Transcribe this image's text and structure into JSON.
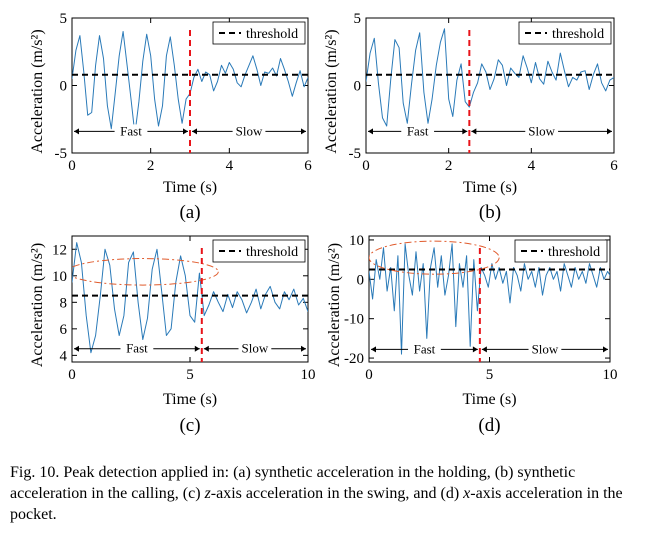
{
  "caption": {
    "label": "Fig. 10.",
    "text_a": "Peak detection applied in: (a) synthetic acceleration in the holding, (b) synthetic acceleration in the calling, (c) ",
    "var_z": "z",
    "text_b": "-axis acceleration in the swing, and (d) ",
    "var_x": "x",
    "text_c": "-axis acceleration in the pocket."
  },
  "chart_data": [
    {
      "panel": "(a)",
      "type": "line",
      "xlabel": "Time (s)",
      "ylabel": "Acceleration (m/s²)",
      "xlim": [
        0,
        6
      ],
      "ylim": [
        -5,
        5
      ],
      "xticks": [
        0,
        2,
        4,
        6
      ],
      "yticks": [
        -5,
        0,
        5
      ],
      "legend": {
        "entries": [
          "threshold"
        ],
        "placement": "top-right"
      },
      "threshold": 0.8,
      "split_time": 3.0,
      "segments": [
        "Fast",
        "Slow"
      ],
      "segment_y": -3.4,
      "series": [
        {
          "x": [
            0,
            0.1,
            0.2,
            0.3,
            0.4,
            0.5,
            0.6,
            0.7,
            0.8,
            0.9,
            1.0,
            1.1,
            1.2,
            1.3,
            1.4,
            1.5,
            1.6,
            1.7,
            1.8,
            1.9,
            2.0,
            2.1,
            2.2,
            2.3,
            2.4,
            2.5,
            2.6,
            2.7,
            2.8,
            2.9,
            3.0,
            3.1,
            3.2,
            3.3,
            3.4,
            3.5,
            3.6,
            3.7,
            3.8,
            3.9,
            4.0,
            4.1,
            4.2,
            4.3,
            4.4,
            4.5,
            4.6,
            4.7,
            4.8,
            4.9,
            5.0,
            5.1,
            5.2,
            5.3,
            5.4,
            5.5,
            5.6,
            5.7,
            5.8,
            5.9,
            6.0
          ],
          "y": [
            0.5,
            2.6,
            3.7,
            1.0,
            -2.2,
            -2.0,
            1.5,
            3.7,
            2.0,
            -1.5,
            -3.2,
            -0.5,
            2.2,
            4.0,
            1.5,
            -1.0,
            -3.6,
            -1.2,
            1.8,
            3.8,
            2.2,
            -1.0,
            -3.0,
            -1.5,
            2.2,
            3.6,
            1.5,
            -1.0,
            -2.8,
            -1.0,
            -0.6,
            0.6,
            1.2,
            0.3,
            1.0,
            0.8,
            -0.4,
            0.3,
            1.5,
            0.9,
            1.7,
            1.2,
            0.2,
            -0.1,
            0.8,
            1.5,
            2.2,
            1.2,
            0.0,
            1.0,
            0.9,
            1.3,
            0.7,
            2.0,
            1.2,
            0.3,
            -0.8,
            0.2,
            1.1,
            -0.1,
            0.6
          ]
        }
      ]
    },
    {
      "panel": "(b)",
      "type": "line",
      "xlabel": "Time (s)",
      "ylabel": "Acceleration (m/s²)",
      "xlim": [
        0,
        6
      ],
      "ylim": [
        -5,
        5
      ],
      "xticks": [
        0,
        2,
        4,
        6
      ],
      "yticks": [
        -5,
        0,
        5
      ],
      "legend": {
        "entries": [
          "threshold"
        ],
        "placement": "top-right"
      },
      "threshold": 0.8,
      "split_time": 2.5,
      "segments": [
        "Fast",
        "Slow"
      ],
      "segment_y": -3.4,
      "series": [
        {
          "x": [
            0,
            0.1,
            0.2,
            0.3,
            0.4,
            0.5,
            0.6,
            0.7,
            0.8,
            0.9,
            1.0,
            1.1,
            1.2,
            1.3,
            1.4,
            1.5,
            1.6,
            1.7,
            1.8,
            1.9,
            2.0,
            2.1,
            2.2,
            2.3,
            2.4,
            2.5,
            2.6,
            2.7,
            2.8,
            2.9,
            3.0,
            3.1,
            3.2,
            3.3,
            3.4,
            3.5,
            3.6,
            3.7,
            3.8,
            3.9,
            4.0,
            4.1,
            4.2,
            4.3,
            4.4,
            4.5,
            4.6,
            4.7,
            4.8,
            4.9,
            5.0,
            5.1,
            5.2,
            5.3,
            5.4,
            5.5,
            5.6,
            5.7,
            5.8,
            5.9,
            6.0
          ],
          "y": [
            0.3,
            2.4,
            3.5,
            0.2,
            -2.4,
            -3.0,
            0.5,
            3.4,
            2.8,
            -1.3,
            -2.8,
            0.1,
            2.6,
            3.9,
            -0.5,
            -2.8,
            -1.0,
            1.5,
            3.2,
            4.2,
            -1.0,
            -2.3,
            0.4,
            1.6,
            -1.2,
            -1.6,
            -0.5,
            0.2,
            1.6,
            1.0,
            -0.3,
            0.5,
            1.9,
            1.5,
            0.0,
            1.3,
            0.9,
            0.6,
            2.2,
            1.3,
            0.2,
            1.7,
            0.5,
            0.1,
            1.8,
            1.0,
            0.4,
            2.4,
            1.1,
            -0.1,
            0.6,
            0.4,
            1.0,
            1.1,
            -0.3,
            0.8,
            1.6,
            0.2,
            -0.4,
            0.4,
            0.6
          ]
        }
      ]
    },
    {
      "panel": "(c)",
      "type": "line",
      "xlabel": "Time (s)",
      "ylabel": "Acceleration (m/s²)",
      "xlim": [
        0,
        10
      ],
      "ylim": [
        3.5,
        13
      ],
      "xticks": [
        0,
        5,
        10
      ],
      "yticks": [
        4,
        6,
        8,
        10,
        12
      ],
      "legend": {
        "entries": [
          "threshold"
        ],
        "placement": "top-right"
      },
      "threshold": 8.5,
      "split_time": 5.5,
      "segments": [
        "Fast",
        "Slow"
      ],
      "segment_y": 4.5,
      "highlight_ellipse": {
        "cx": 3.0,
        "cy": 10.3,
        "rx": 3.2,
        "ry": 1.0
      },
      "series": [
        {
          "x": [
            0,
            0.2,
            0.4,
            0.6,
            0.8,
            1.0,
            1.2,
            1.4,
            1.6,
            1.8,
            2.0,
            2.2,
            2.4,
            2.6,
            2.8,
            3.0,
            3.2,
            3.4,
            3.6,
            3.8,
            4.0,
            4.2,
            4.4,
            4.6,
            4.8,
            5.0,
            5.2,
            5.4,
            5.6,
            5.8,
            6.0,
            6.2,
            6.4,
            6.6,
            6.8,
            7.0,
            7.2,
            7.4,
            7.6,
            7.8,
            8.0,
            8.2,
            8.4,
            8.6,
            8.8,
            9.0,
            9.2,
            9.4,
            9.6,
            9.8,
            10.0
          ],
          "y": [
            9.5,
            12.5,
            11.0,
            7.0,
            4.2,
            5.5,
            8.5,
            12.0,
            10.8,
            7.5,
            5.5,
            7.0,
            11.0,
            11.8,
            8.0,
            5.2,
            6.8,
            10.5,
            12.0,
            8.8,
            5.5,
            6.0,
            9.5,
            11.5,
            10.0,
            7.0,
            6.5,
            10.2,
            7.0,
            7.8,
            8.8,
            8.0,
            7.3,
            8.6,
            7.6,
            8.8,
            8.2,
            7.2,
            8.0,
            9.0,
            7.5,
            8.6,
            9.2,
            8.0,
            7.5,
            8.8,
            8.2,
            9.0,
            7.8,
            8.3,
            7.3
          ]
        }
      ]
    },
    {
      "panel": "(d)",
      "type": "line",
      "xlabel": "Time (s)",
      "ylabel": "Acceleration (m/s²)",
      "xlim": [
        0,
        10
      ],
      "ylim": [
        -21,
        11
      ],
      "xticks": [
        0,
        5,
        10
      ],
      "yticks": [
        -20,
        -10,
        0,
        10
      ],
      "legend": {
        "entries": [
          "threshold"
        ],
        "placement": "top-right"
      },
      "threshold": 2.5,
      "split_time": 4.6,
      "segments": [
        "Fast",
        "Slow"
      ],
      "segment_y": -17.8,
      "highlight_ellipse": {
        "cx": 2.7,
        "cy": 5.5,
        "rx": 2.7,
        "ry": 4.2
      },
      "series": [
        {
          "x": [
            0,
            0.15,
            0.3,
            0.45,
            0.6,
            0.75,
            0.9,
            1.05,
            1.2,
            1.35,
            1.5,
            1.65,
            1.8,
            1.95,
            2.1,
            2.25,
            2.4,
            2.55,
            2.7,
            2.85,
            3.0,
            3.15,
            3.3,
            3.45,
            3.6,
            3.75,
            3.9,
            4.05,
            4.2,
            4.35,
            4.5,
            4.65,
            4.8,
            4.95,
            5.1,
            5.25,
            5.4,
            5.55,
            5.7,
            5.85,
            6.0,
            6.15,
            6.3,
            6.45,
            6.6,
            6.75,
            6.9,
            7.05,
            7.2,
            7.35,
            7.5,
            7.65,
            7.8,
            7.95,
            8.1,
            8.25,
            8.4,
            8.55,
            8.7,
            8.85,
            9.0,
            9.15,
            9.3,
            9.45,
            9.6,
            9.75,
            9.9,
            10.0
          ],
          "y": [
            2,
            -5,
            5,
            0,
            8,
            -3,
            3,
            -8,
            6,
            -19,
            9,
            1,
            -4,
            7,
            -3,
            4,
            -15,
            3,
            8,
            -2,
            6,
            -4,
            1,
            9,
            -12,
            4,
            -2,
            6,
            -17,
            5,
            -8,
            3,
            1,
            -2,
            4,
            0,
            3,
            -1,
            2,
            -6,
            3,
            1,
            -3,
            4,
            0,
            2,
            -2,
            3,
            -4,
            1,
            3,
            0,
            2,
            -3,
            4,
            1,
            -2,
            3,
            0,
            2,
            -1,
            4,
            1,
            -2,
            3,
            0,
            2,
            1
          ]
        }
      ]
    }
  ]
}
